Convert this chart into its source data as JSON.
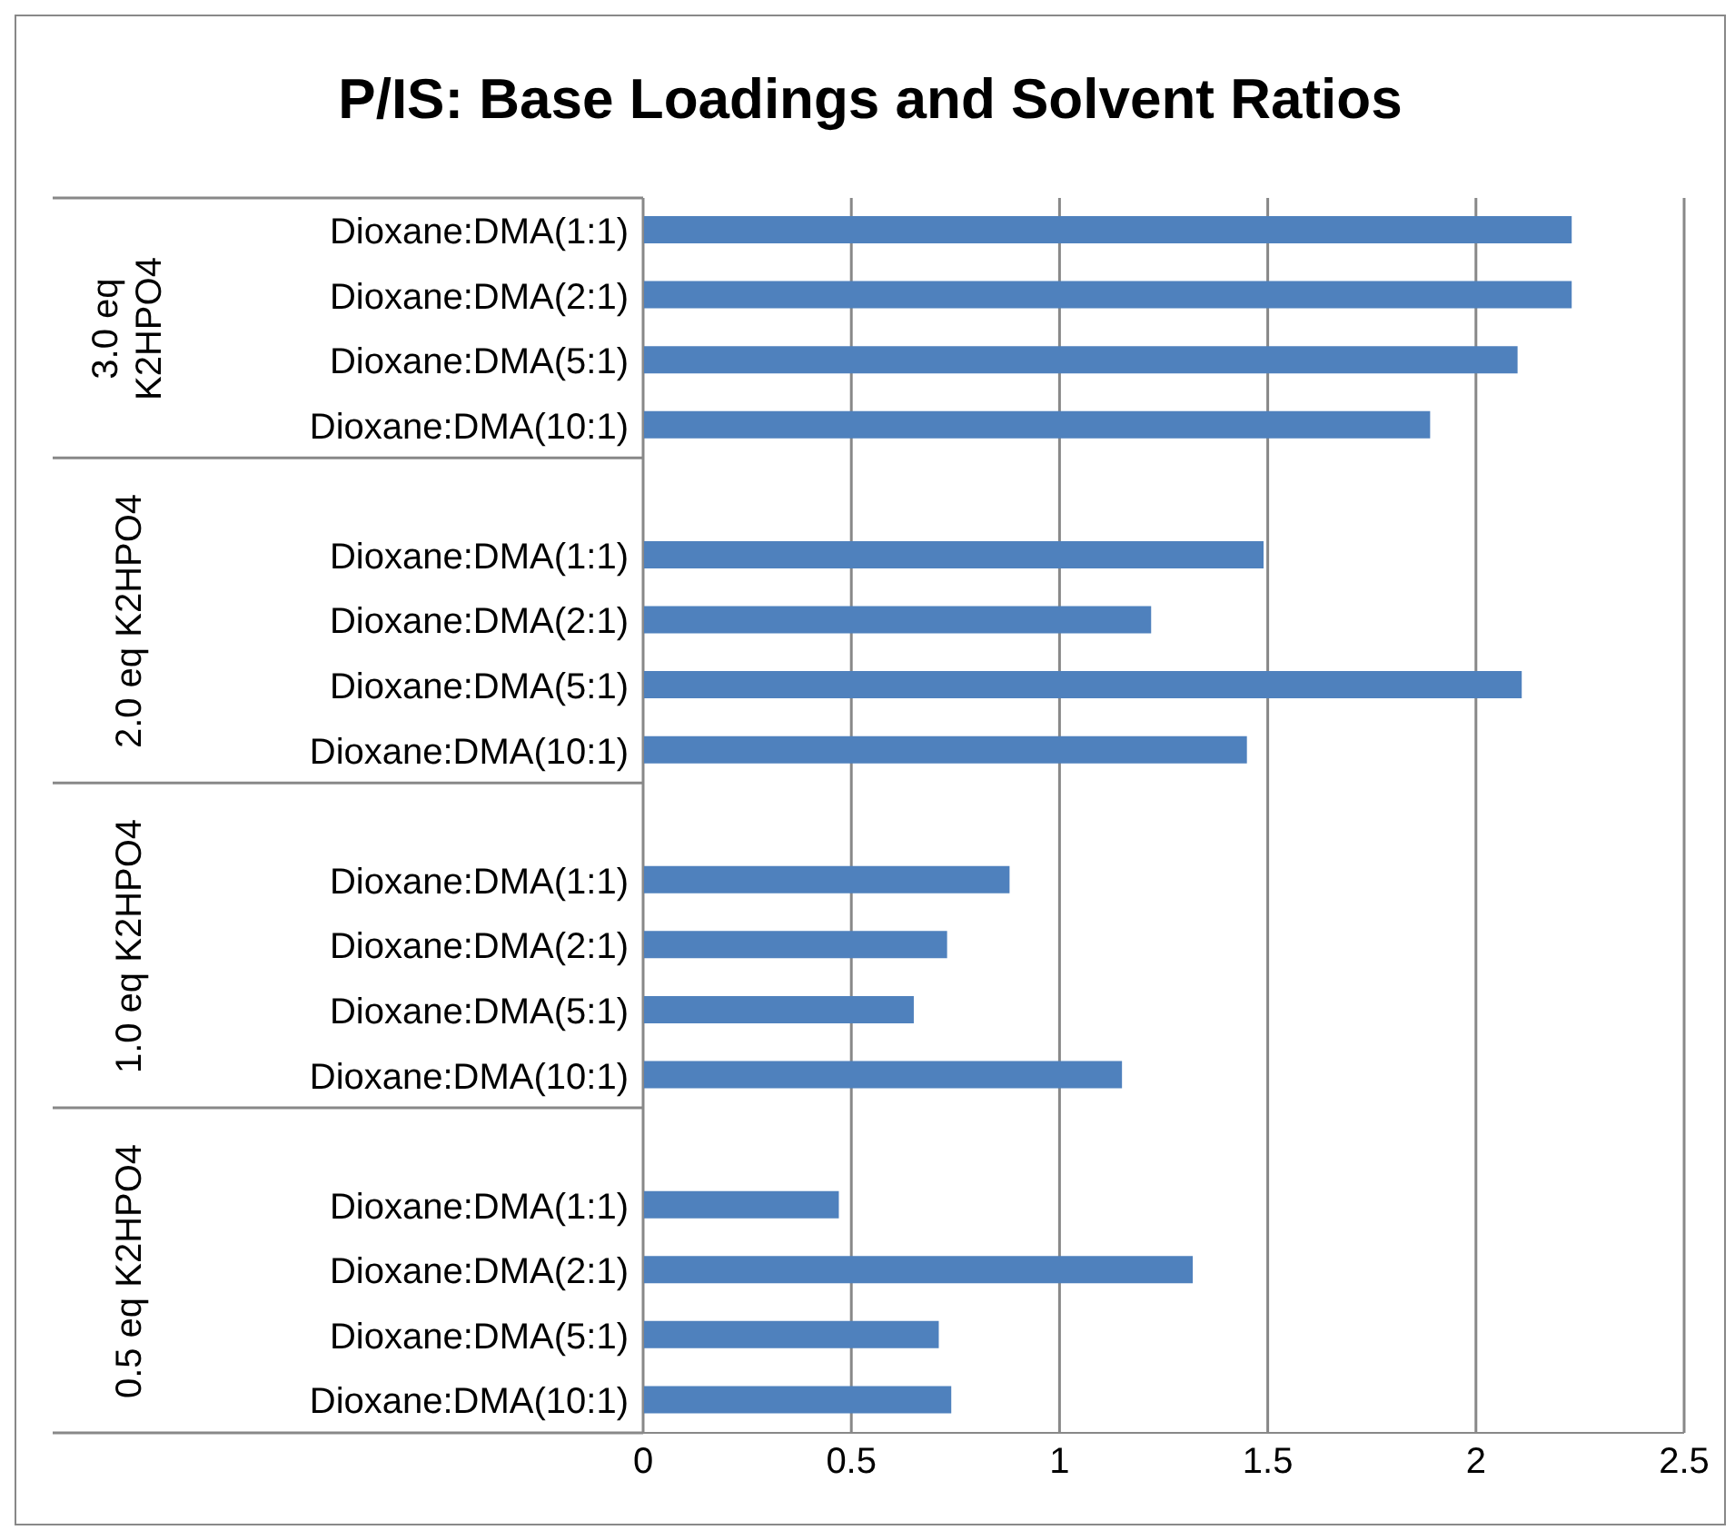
{
  "chart_data": {
    "type": "bar",
    "orientation": "horizontal",
    "title": "P/IS: Base Loadings and Solvent Ratios",
    "categories": [
      "Dioxane:DMA(1:1)",
      "Dioxane:DMA(2:1)",
      "Dioxane:DMA(5:1)",
      "Dioxane:DMA(10:1)",
      null,
      "Dioxane:DMA(1:1)",
      "Dioxane:DMA(2:1)",
      "Dioxane:DMA(5:1)",
      "Dioxane:DMA(10:1)",
      null,
      "Dioxane:DMA(1:1)",
      "Dioxane:DMA(2:1)",
      "Dioxane:DMA(5:1)",
      "Dioxane:DMA(10:1)",
      null,
      "Dioxane:DMA(1:1)",
      "Dioxane:DMA(2:1)",
      "Dioxane:DMA(5:1)",
      "Dioxane:DMA(10:1)"
    ],
    "values": [
      2.23,
      2.23,
      2.1,
      1.89,
      null,
      1.49,
      1.22,
      2.11,
      1.45,
      null,
      0.88,
      0.73,
      0.65,
      1.15,
      null,
      0.47,
      1.32,
      0.71,
      0.74
    ],
    "color": "#4f81bd",
    "annotations": [
      "3.0 eq K2HPO4",
      "2.0 eq K2HPO4",
      "1.0 eq K2HPO4",
      "0.5 eq K2HPO4"
    ],
    "xlim": [
      0,
      2.5
    ],
    "xticks": [
      0,
      0.5,
      1,
      1.5,
      2,
      2.5
    ],
    "grid": "x"
  }
}
